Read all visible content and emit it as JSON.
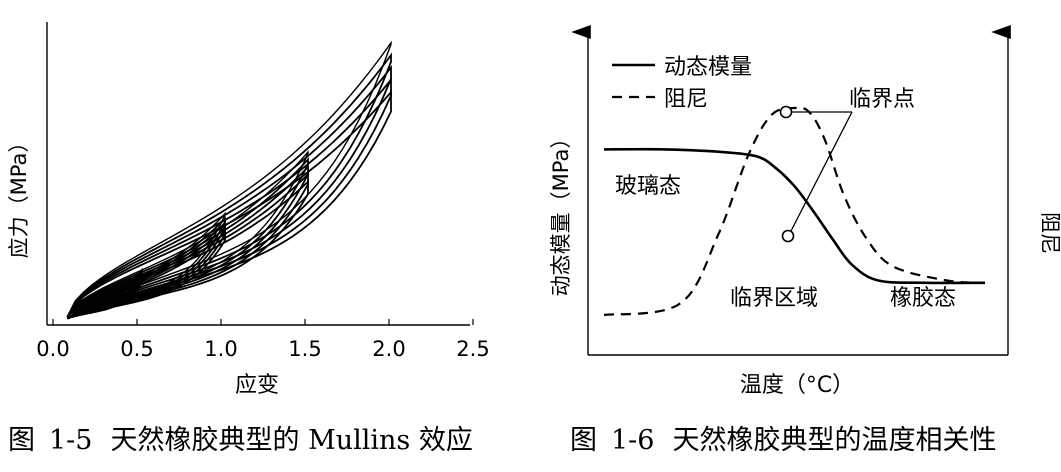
{
  "chart_data": [
    {
      "type": "line",
      "caption_prefix": "图",
      "caption_number": "1-5",
      "caption_text": "天然橡胶典型的 Mullins 效应",
      "xlabel": "应变",
      "ylabel": "应力（MPa）",
      "xlim": [
        0,
        2.5
      ],
      "xticks": [
        0.0,
        0.5,
        1.0,
        1.5,
        2.0,
        2.5
      ],
      "xtick_labels": [
        "0.0",
        "0.5",
        "1.0",
        "1.5",
        "2.0",
        "2.5"
      ],
      "grid": false,
      "loops": [
        {
          "max_strain": 0.5,
          "peak_stress": 0.17,
          "cycles": 5
        },
        {
          "max_strain": 1.0,
          "peak_stress": 0.37,
          "cycles": 5
        },
        {
          "max_strain": 1.5,
          "peak_stress": 0.59,
          "cycles": 5
        },
        {
          "max_strain": 2.0,
          "peak_stress": 0.98,
          "cycles": 5
        }
      ]
    },
    {
      "type": "line",
      "caption_prefix": "图",
      "caption_number": "1-6",
      "caption_text": "天然橡胶典型的温度相关性",
      "xlabel": "温度（°C）",
      "ylabel_left": "动态模量（MPa）",
      "ylabel_right": "阻尼",
      "legend_position": "top-left",
      "series": [
        {
          "name": "动态模量",
          "style": "solid",
          "x": [
            0,
            0.16,
            0.3,
            0.4,
            0.45,
            0.5,
            0.55,
            0.6,
            0.65,
            0.72,
            0.85,
            1.0
          ],
          "y": [
            0.72,
            0.72,
            0.71,
            0.69,
            0.64,
            0.56,
            0.45,
            0.33,
            0.22,
            0.15,
            0.14,
            0.14
          ]
        },
        {
          "name": "阻尼",
          "style": "dashed",
          "x": [
            0,
            0.2,
            0.3,
            0.38,
            0.44,
            0.5,
            0.54,
            0.58,
            0.63,
            0.69,
            0.76,
            0.9,
            1.0
          ],
          "y": [
            0.0,
            0.05,
            0.35,
            0.7,
            0.87,
            0.9,
            0.88,
            0.76,
            0.52,
            0.33,
            0.21,
            0.15,
            0.14
          ]
        }
      ],
      "annotations": {
        "critical_point": "临界点",
        "glassy": "玻璃态",
        "transition": "临界区域",
        "rubbery": "橡胶态"
      }
    }
  ]
}
